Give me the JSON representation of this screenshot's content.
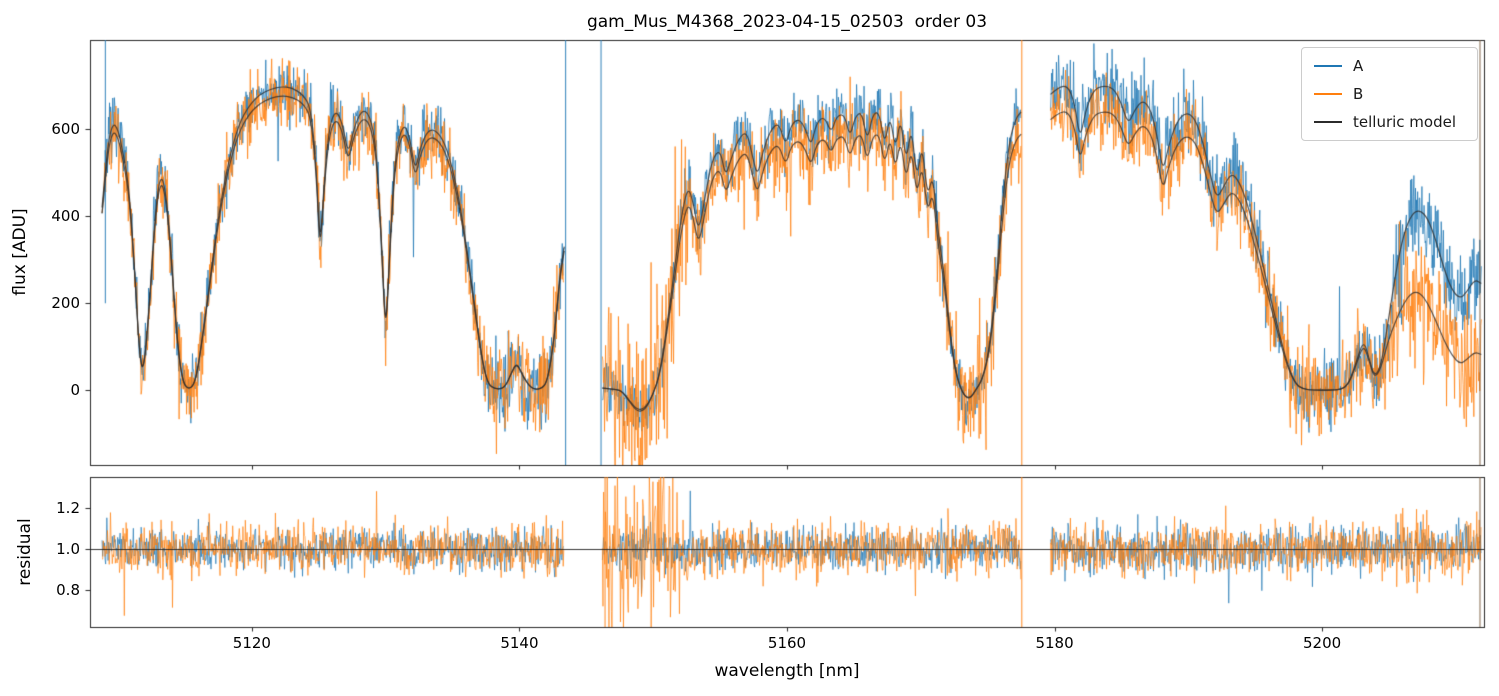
{
  "chart_data": {
    "type": "line",
    "title": "gam_Mus_M4368_2023-04-15_02503  order 03",
    "xlabel": "wavelength [nm]",
    "xlim": [
      5107.9,
      5212.1
    ],
    "xticks": [
      5120,
      5140,
      5160,
      5180,
      5200
    ],
    "panels": [
      {
        "ylabel": "flux [ADU]",
        "ylim": [
          -172,
          805
        ],
        "yticks": [
          0,
          200,
          400,
          600
        ]
      },
      {
        "ylabel": "residual",
        "ylim": [
          0.62,
          1.35
        ],
        "yticks": [
          0.8,
          1.0,
          1.2
        ],
        "reference_line": 1.0
      }
    ],
    "legend_position": "upper right",
    "series": [
      {
        "name": "A",
        "color": "#1f77b4"
      },
      {
        "name": "B",
        "color": "#ff7f0e"
      },
      {
        "name": "telluric model",
        "color": "#2b2b2b"
      }
    ],
    "segments": [
      {
        "range": [
          5108.8,
          5143.35
        ],
        "b_factor": 0.97,
        "model": [
          [
            5108.8,
            420
          ],
          [
            5109.2,
            560
          ],
          [
            5109.6,
            615
          ],
          [
            5110.0,
            600
          ],
          [
            5110.4,
            540
          ],
          [
            5110.8,
            470
          ],
          [
            5111.2,
            300
          ],
          [
            5111.6,
            80
          ],
          [
            5111.9,
            40
          ],
          [
            5112.3,
            180
          ],
          [
            5112.8,
            420
          ],
          [
            5113.2,
            500
          ],
          [
            5113.6,
            450
          ],
          [
            5114.0,
            300
          ],
          [
            5114.4,
            120
          ],
          [
            5114.8,
            20
          ],
          [
            5115.3,
            0
          ],
          [
            5115.8,
            20
          ],
          [
            5116.3,
            120
          ],
          [
            5116.9,
            260
          ],
          [
            5117.5,
            400
          ],
          [
            5118.2,
            520
          ],
          [
            5119.0,
            610
          ],
          [
            5119.8,
            655
          ],
          [
            5120.6,
            680
          ],
          [
            5121.4,
            692
          ],
          [
            5122.2,
            698
          ],
          [
            5123.0,
            695
          ],
          [
            5123.8,
            680
          ],
          [
            5124.4,
            650
          ],
          [
            5124.8,
            520
          ],
          [
            5125.1,
            320
          ],
          [
            5125.4,
            480
          ],
          [
            5125.8,
            610
          ],
          [
            5126.3,
            645
          ],
          [
            5126.8,
            610
          ],
          [
            5127.2,
            540
          ],
          [
            5127.6,
            600
          ],
          [
            5128.2,
            645
          ],
          [
            5128.8,
            635
          ],
          [
            5129.3,
            560
          ],
          [
            5129.7,
            340
          ],
          [
            5130.0,
            120
          ],
          [
            5130.3,
            320
          ],
          [
            5130.7,
            540
          ],
          [
            5131.3,
            615
          ],
          [
            5131.8,
            585
          ],
          [
            5132.2,
            500
          ],
          [
            5132.6,
            560
          ],
          [
            5133.2,
            600
          ],
          [
            5133.9,
            595
          ],
          [
            5134.6,
            555
          ],
          [
            5135.3,
            470
          ],
          [
            5135.9,
            360
          ],
          [
            5136.5,
            230
          ],
          [
            5137.1,
            90
          ],
          [
            5137.6,
            15
          ],
          [
            5138.2,
            2
          ],
          [
            5138.9,
            5
          ],
          [
            5139.4,
            40
          ],
          [
            5139.8,
            65
          ],
          [
            5140.3,
            30
          ],
          [
            5140.9,
            3
          ],
          [
            5141.6,
            2
          ],
          [
            5142.1,
            20
          ],
          [
            5142.6,
            120
          ],
          [
            5143.0,
            260
          ],
          [
            5143.35,
            330
          ]
        ]
      },
      {
        "range": [
          5146.2,
          5177.5
        ],
        "b_factor": 0.92,
        "model": [
          [
            5146.2,
            5
          ],
          [
            5147.0,
            2
          ],
          [
            5147.6,
            0
          ],
          [
            5148.2,
            -25
          ],
          [
            5148.8,
            -50
          ],
          [
            5149.4,
            -45
          ],
          [
            5150.0,
            -10
          ],
          [
            5150.5,
            40
          ],
          [
            5151.0,
            140
          ],
          [
            5151.6,
            280
          ],
          [
            5152.1,
            400
          ],
          [
            5152.6,
            470
          ],
          [
            5153.0,
            430
          ],
          [
            5153.4,
            360
          ],
          [
            5153.9,
            450
          ],
          [
            5154.4,
            530
          ],
          [
            5155.0,
            555
          ],
          [
            5155.4,
            490
          ],
          [
            5155.8,
            530
          ],
          [
            5156.4,
            580
          ],
          [
            5157.0,
            595
          ],
          [
            5157.4,
            540
          ],
          [
            5157.8,
            490
          ],
          [
            5158.2,
            550
          ],
          [
            5158.8,
            600
          ],
          [
            5159.4,
            615
          ],
          [
            5159.9,
            560
          ],
          [
            5160.3,
            610
          ],
          [
            5160.9,
            625
          ],
          [
            5161.4,
            600
          ],
          [
            5161.8,
            560
          ],
          [
            5162.2,
            615
          ],
          [
            5162.8,
            630
          ],
          [
            5163.3,
            590
          ],
          [
            5163.7,
            630
          ],
          [
            5164.3,
            635
          ],
          [
            5164.7,
            580
          ],
          [
            5165.1,
            630
          ],
          [
            5165.6,
            640
          ],
          [
            5166.0,
            570
          ],
          [
            5166.4,
            635
          ],
          [
            5166.9,
            640
          ],
          [
            5167.3,
            560
          ],
          [
            5167.7,
            635
          ],
          [
            5168.1,
            550
          ],
          [
            5168.5,
            630
          ],
          [
            5168.9,
            520
          ],
          [
            5169.3,
            610
          ],
          [
            5169.7,
            480
          ],
          [
            5170.1,
            570
          ],
          [
            5170.5,
            440
          ],
          [
            5170.9,
            500
          ],
          [
            5171.3,
            360
          ],
          [
            5171.7,
            280
          ],
          [
            5172.1,
            160
          ],
          [
            5172.5,
            60
          ],
          [
            5172.9,
            10
          ],
          [
            5173.3,
            -15
          ],
          [
            5173.7,
            -20
          ],
          [
            5174.1,
            0
          ],
          [
            5174.6,
            25
          ],
          [
            5175.1,
            90
          ],
          [
            5175.6,
            230
          ],
          [
            5176.1,
            430
          ],
          [
            5176.6,
            570
          ],
          [
            5177.1,
            625
          ],
          [
            5177.5,
            640
          ]
        ]
      },
      {
        "range": [
          5179.7,
          5211.9
        ],
        "b_factor": 0.915,
        "model": [
          [
            5179.7,
            680
          ],
          [
            5180.3,
            697
          ],
          [
            5181.0,
            700
          ],
          [
            5181.5,
            660
          ],
          [
            5181.9,
            575
          ],
          [
            5182.3,
            640
          ],
          [
            5182.9,
            690
          ],
          [
            5183.6,
            700
          ],
          [
            5184.4,
            695
          ],
          [
            5185.0,
            660
          ],
          [
            5185.5,
            610
          ],
          [
            5186.0,
            645
          ],
          [
            5186.6,
            668
          ],
          [
            5187.2,
            645
          ],
          [
            5187.7,
            580
          ],
          [
            5188.1,
            500
          ],
          [
            5188.5,
            560
          ],
          [
            5189.1,
            615
          ],
          [
            5189.8,
            640
          ],
          [
            5190.5,
            625
          ],
          [
            5191.1,
            570
          ],
          [
            5191.6,
            500
          ],
          [
            5192.1,
            440
          ],
          [
            5192.6,
            465
          ],
          [
            5193.2,
            500
          ],
          [
            5193.8,
            480
          ],
          [
            5194.4,
            430
          ],
          [
            5195.0,
            360
          ],
          [
            5195.6,
            285
          ],
          [
            5196.2,
            205
          ],
          [
            5196.8,
            130
          ],
          [
            5197.4,
            60
          ],
          [
            5198.0,
            15
          ],
          [
            5198.6,
            2
          ],
          [
            5199.4,
            0
          ],
          [
            5200.4,
            0
          ],
          [
            5201.4,
            1
          ],
          [
            5202.0,
            15
          ],
          [
            5202.6,
            70
          ],
          [
            5203.1,
            115
          ],
          [
            5203.5,
            75
          ],
          [
            5203.9,
            30
          ],
          [
            5204.4,
            55
          ],
          [
            5204.9,
            150
          ],
          [
            5205.5,
            270
          ],
          [
            5206.1,
            360
          ],
          [
            5206.7,
            405
          ],
          [
            5207.3,
            415
          ],
          [
            5207.9,
            395
          ],
          [
            5208.5,
            345
          ],
          [
            5209.1,
            280
          ],
          [
            5209.7,
            230
          ],
          [
            5210.3,
            210
          ],
          [
            5210.8,
            225
          ],
          [
            5211.4,
            255
          ],
          [
            5211.9,
            245
          ]
        ],
        "model_b": [
          [
            5179.7,
            622
          ],
          [
            5180.3,
            638
          ],
          [
            5181.0,
            641
          ],
          [
            5181.5,
            604
          ],
          [
            5181.9,
            526
          ],
          [
            5182.3,
            586
          ],
          [
            5182.9,
            631
          ],
          [
            5183.6,
            641
          ],
          [
            5184.4,
            636
          ],
          [
            5185.0,
            604
          ],
          [
            5185.5,
            558
          ],
          [
            5186.0,
            590
          ],
          [
            5186.6,
            611
          ],
          [
            5187.2,
            590
          ],
          [
            5187.7,
            531
          ],
          [
            5188.1,
            458
          ],
          [
            5188.5,
            512
          ],
          [
            5189.1,
            563
          ],
          [
            5189.8,
            586
          ],
          [
            5190.5,
            572
          ],
          [
            5191.1,
            522
          ],
          [
            5191.6,
            458
          ],
          [
            5192.1,
            403
          ],
          [
            5192.6,
            425
          ],
          [
            5193.2,
            458
          ],
          [
            5193.8,
            439
          ],
          [
            5194.4,
            393
          ],
          [
            5195.0,
            329
          ],
          [
            5195.6,
            261
          ],
          [
            5196.2,
            188
          ],
          [
            5196.8,
            119
          ],
          [
            5197.4,
            55
          ],
          [
            5198.0,
            14
          ],
          [
            5198.6,
            2
          ],
          [
            5199.4,
            0
          ],
          [
            5200.4,
            0
          ],
          [
            5201.4,
            1
          ],
          [
            5202.0,
            14
          ],
          [
            5202.6,
            64
          ],
          [
            5203.1,
            105
          ],
          [
            5203.5,
            69
          ],
          [
            5203.9,
            27
          ],
          [
            5204.4,
            50
          ],
          [
            5204.9,
            110
          ],
          [
            5205.5,
            160
          ],
          [
            5206.1,
            200
          ],
          [
            5206.7,
            225
          ],
          [
            5207.3,
            225
          ],
          [
            5207.9,
            200
          ],
          [
            5208.5,
            160
          ],
          [
            5209.1,
            115
          ],
          [
            5209.7,
            80
          ],
          [
            5210.3,
            60
          ],
          [
            5210.8,
            70
          ],
          [
            5211.4,
            88
          ],
          [
            5211.9,
            82
          ]
        ]
      }
    ],
    "noise": {
      "base_amp": {
        "A": 58,
        "B": 70
      },
      "residual_amp": {
        "A": 0.085,
        "B": 0.105
      },
      "heavy_tail_prob": 0.008,
      "heavy_tail_factor": 2.6,
      "boosts": [
        {
          "range": [
            5136.4,
            5143.35
          ],
          "series": "A",
          "amp": 80
        },
        {
          "range": [
            5136.4,
            5143.35
          ],
          "series": "B",
          "amp": 88
        },
        {
          "range": [
            5146.2,
            5152.6
          ],
          "series": "B",
          "amp": 190
        },
        {
          "range": [
            5171.4,
            5175.6
          ],
          "series": "B",
          "amp": 115
        },
        {
          "range": [
            5179.7,
            5196.0
          ],
          "series": "A",
          "amp": 80
        },
        {
          "range": [
            5196.0,
            5204.5
          ],
          "series": "A",
          "amp": 75
        },
        {
          "range": [
            5196.0,
            5204.5
          ],
          "series": "B",
          "amp": 90
        },
        {
          "range": [
            5204.5,
            5211.9
          ],
          "series": "A",
          "amp": 85
        },
        {
          "range": [
            5204.5,
            5211.9
          ],
          "series": "B",
          "amp": 125
        }
      ],
      "residual_boosts": [
        {
          "range": [
            5146.2,
            5152.6
          ],
          "series": "B",
          "amp": 0.3
        },
        {
          "range": [
            5171.4,
            5175.6
          ],
          "series": "B",
          "amp": 0.13
        },
        {
          "range": [
            5179.7,
            5211.9
          ],
          "series": "A",
          "amp": 0.1
        },
        {
          "range": [
            5204.5,
            5211.9
          ],
          "series": "B",
          "amp": 0.14
        }
      ]
    },
    "spikes": [
      {
        "panel": "top",
        "x": 5109.05,
        "color": "#1f77b4",
        "y": [
          200,
          805
        ]
      },
      {
        "panel": "top",
        "x": 5143.45,
        "color": "#1f77b4"
      },
      {
        "panel": "top",
        "x": 5146.1,
        "color": "#1f77b4"
      },
      {
        "panel": "top",
        "x": 5177.55,
        "color": "#ff7f0e"
      },
      {
        "panel": "top",
        "x": 5211.8,
        "color": "#7a5c3f"
      },
      {
        "panel": "bottom",
        "x": 5146.4,
        "color": "#ff7f0e"
      },
      {
        "panel": "bottom",
        "x": 5177.55,
        "color": "#ff7f0e"
      },
      {
        "panel": "bottom",
        "x": 5211.8,
        "color": "#7a5c3f"
      }
    ]
  }
}
